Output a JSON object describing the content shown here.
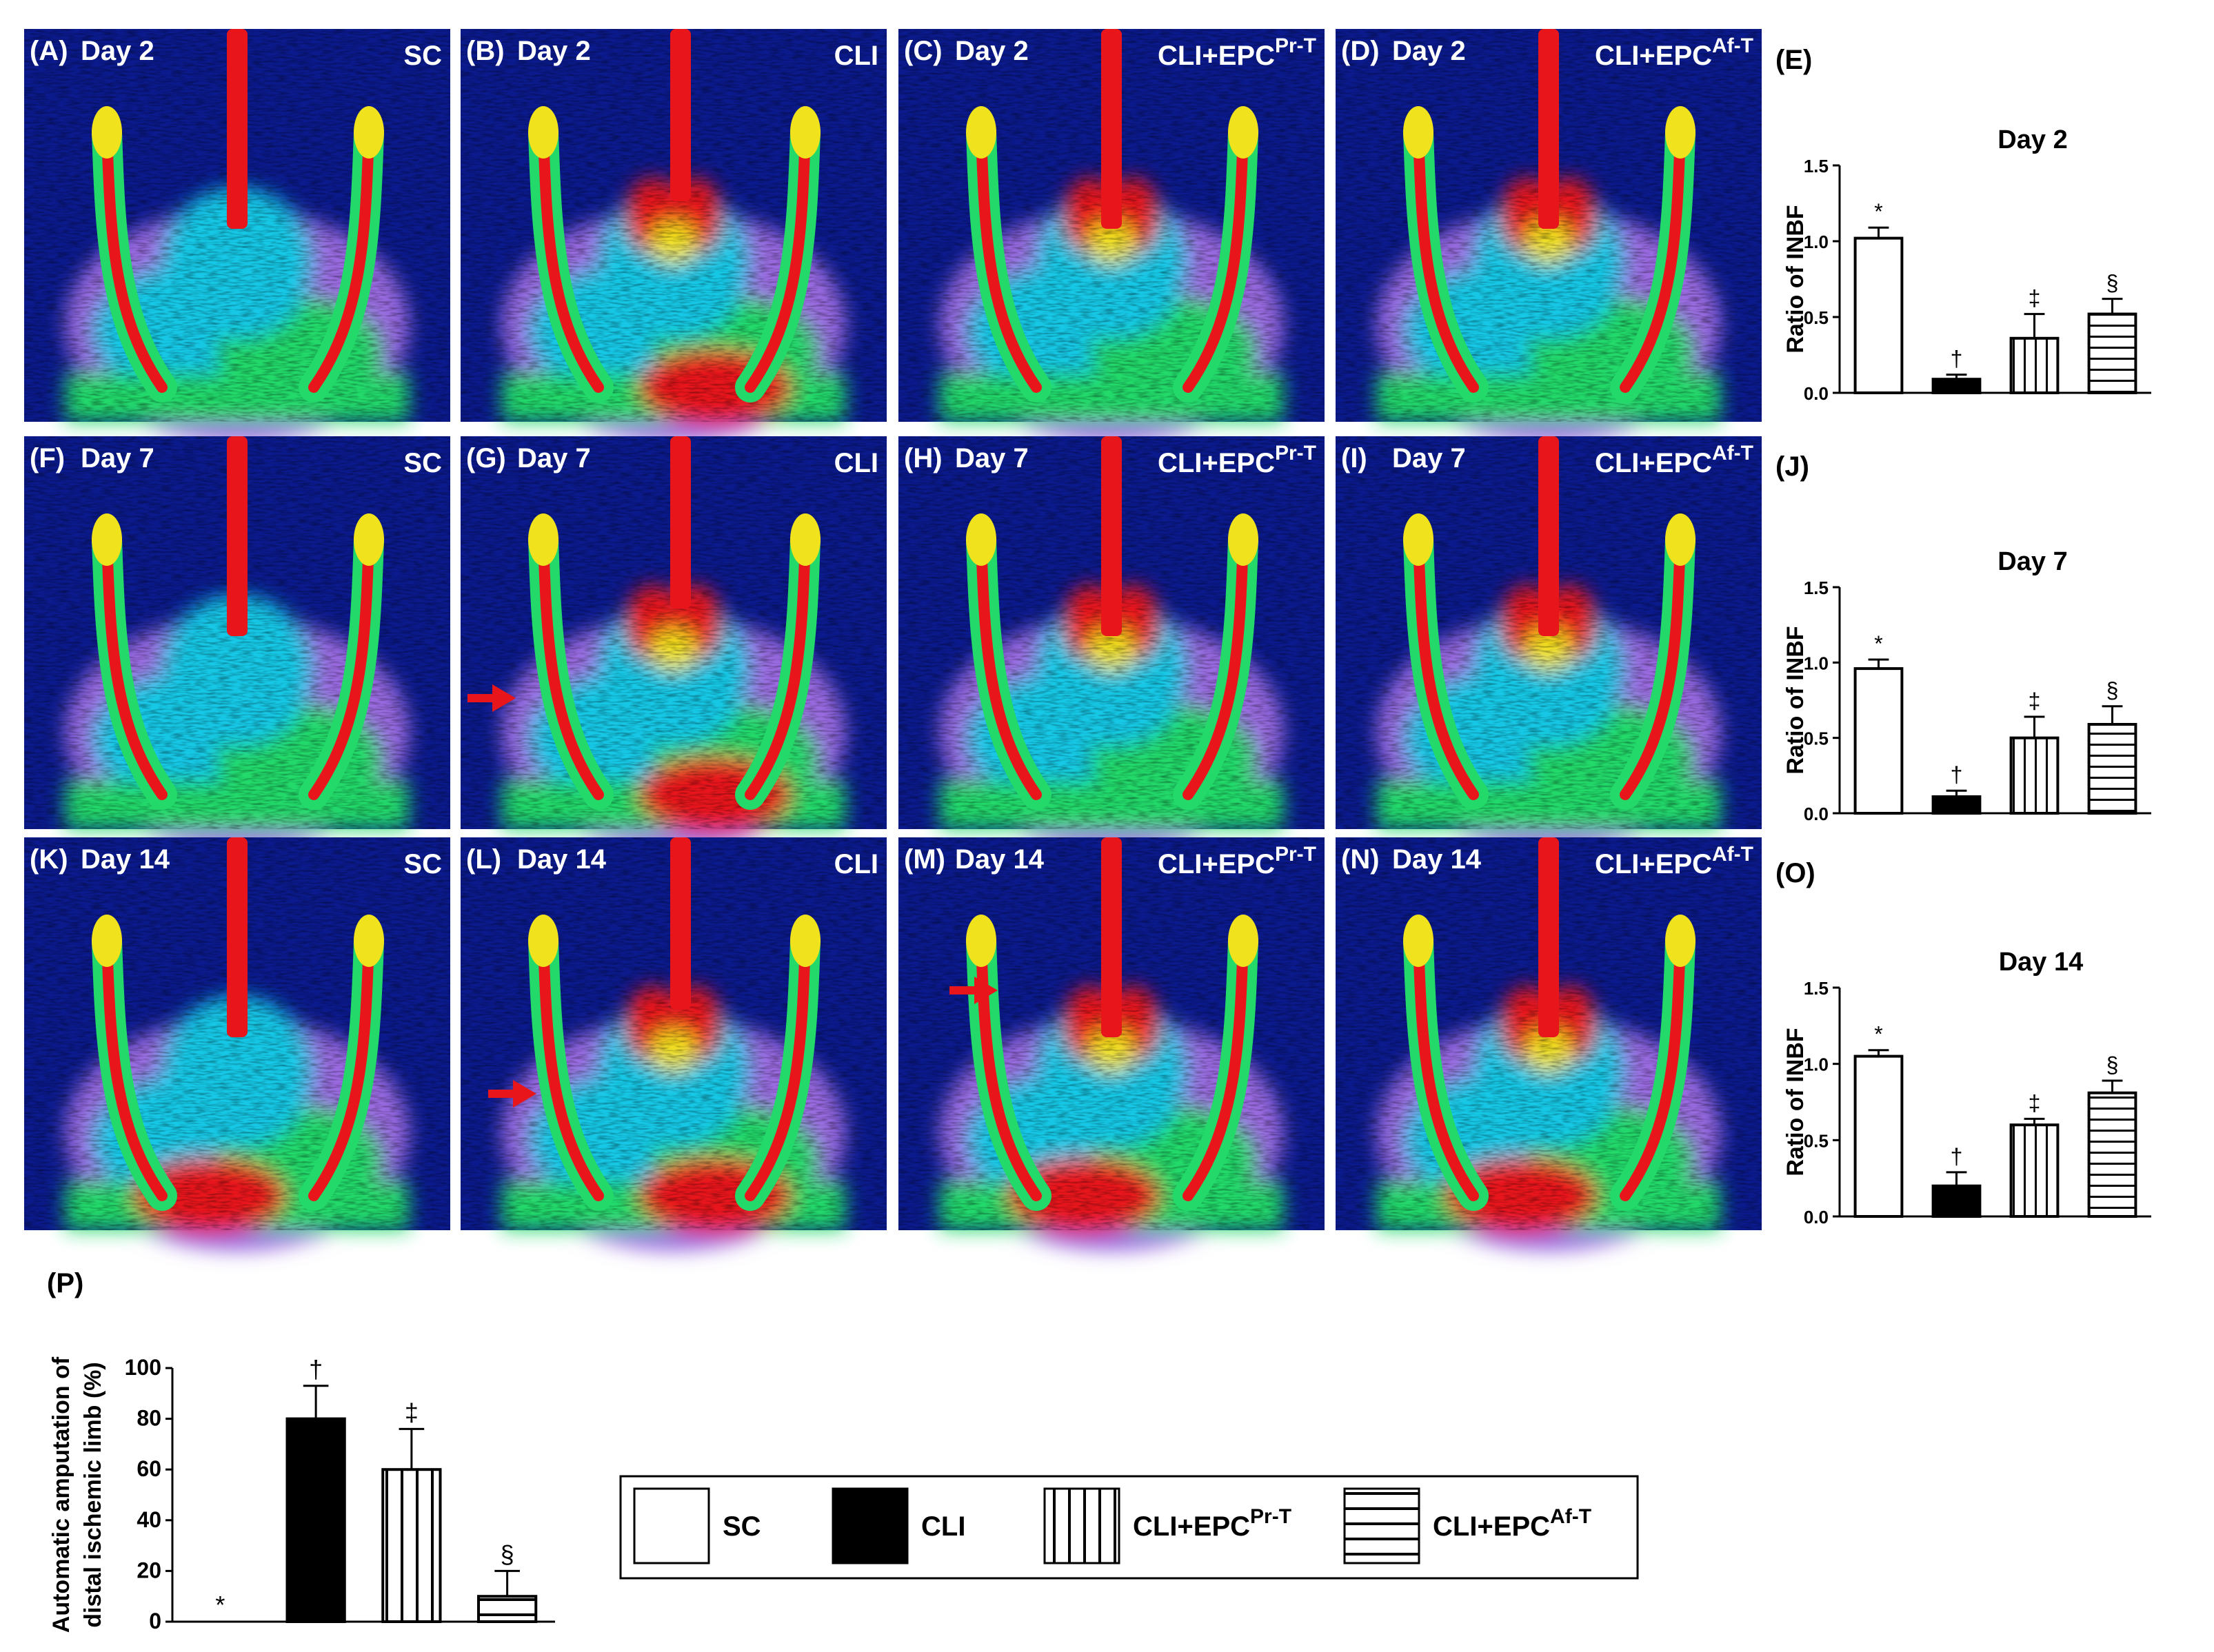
{
  "figure": {
    "rows": [
      {
        "day_label": "Day 2",
        "panels": [
          {
            "letter": "(A)",
            "group_main": "SC",
            "group_sup": ""
          },
          {
            "letter": "(B)",
            "group_main": "CLI",
            "group_sup": ""
          },
          {
            "letter": "(C)",
            "group_main": "CLI+EPC",
            "group_sup": "Pr-T"
          },
          {
            "letter": "(D)",
            "group_main": "CLI+EPC",
            "group_sup": "Af-T"
          }
        ]
      },
      {
        "day_label": "Day 7",
        "panels": [
          {
            "letter": "(F)",
            "group_main": "SC",
            "group_sup": ""
          },
          {
            "letter": "(G)",
            "group_main": "CLI",
            "group_sup": ""
          },
          {
            "letter": "(H)",
            "group_main": "CLI+EPC",
            "group_sup": "Pr-T"
          },
          {
            "letter": "(I)",
            "group_main": "CLI+EPC",
            "group_sup": "Af-T"
          }
        ]
      },
      {
        "day_label": "Day 14",
        "panels": [
          {
            "letter": "(K)",
            "group_main": "SC",
            "group_sup": ""
          },
          {
            "letter": "(L)",
            "group_main": "CLI",
            "group_sup": ""
          },
          {
            "letter": "(M)",
            "group_main": "CLI+EPC",
            "group_sup": "Pr-T"
          },
          {
            "letter": "(N)",
            "group_main": "CLI+EPC",
            "group_sup": "Af-T"
          }
        ]
      }
    ],
    "perfusion_colors": [
      "#0b1a8c",
      "#5a3fd0",
      "#9a6be0",
      "#19c8e6",
      "#22d96a",
      "#f0e21c",
      "#e8161a"
    ],
    "arrow_color": "#e8161a",
    "legend": [
      {
        "label": "SC",
        "sup": "",
        "pattern": "white"
      },
      {
        "label": "CLI",
        "sup": "",
        "pattern": "black"
      },
      {
        "label": "CLI+EPC",
        "sup": "Pr-T",
        "pattern": "vertical"
      },
      {
        "label": "CLI+EPC",
        "sup": "Af-T",
        "pattern": "horizontal"
      }
    ]
  },
  "chart_data": [
    {
      "panel": "(E)",
      "type": "bar",
      "title": "Day 2",
      "ylabel": "Ratio of INBF",
      "categories": [
        "SC",
        "CLI",
        "CLI+EPC Pr-T",
        "CLI+EPC Af-T"
      ],
      "values": [
        1.02,
        0.09,
        0.36,
        0.52
      ],
      "errors": [
        0.07,
        0.03,
        0.16,
        0.1
      ],
      "markers": [
        "*",
        "†",
        "‡",
        "§"
      ],
      "ylim": [
        0,
        1.5
      ],
      "yticks": [
        "0.0",
        "0.5",
        "1.0",
        "1.5"
      ]
    },
    {
      "panel": "(J)",
      "type": "bar",
      "title": "Day 7",
      "ylabel": "Ratio of INBF",
      "categories": [
        "SC",
        "CLI",
        "CLI+EPC Pr-T",
        "CLI+EPC Af-T"
      ],
      "values": [
        0.96,
        0.11,
        0.5,
        0.59
      ],
      "errors": [
        0.06,
        0.04,
        0.14,
        0.12
      ],
      "markers": [
        "*",
        "†",
        "‡",
        "§"
      ],
      "ylim": [
        0,
        1.5
      ],
      "yticks": [
        "0.0",
        "0.5",
        "1.0",
        "1.5"
      ]
    },
    {
      "panel": "(O)",
      "type": "bar",
      "title": "Day 14",
      "ylabel": "Ratio of INBF",
      "categories": [
        "SC",
        "CLI",
        "CLI+EPC Pr-T",
        "CLI+EPC Af-T"
      ],
      "values": [
        1.05,
        0.2,
        0.6,
        0.81
      ],
      "errors": [
        0.04,
        0.09,
        0.04,
        0.08
      ],
      "markers": [
        "*",
        "†",
        "‡",
        "§"
      ],
      "ylim": [
        0,
        1.5
      ],
      "yticks": [
        "0.0",
        "0.5",
        "1.0",
        "1.5"
      ]
    },
    {
      "panel": "(P)",
      "type": "bar",
      "title": "",
      "ylabel": "Automatic amputation of distal ischemic limb (%)",
      "ylabel_lines": [
        "Automatic amputation of",
        "distal ischemic limb (%)"
      ],
      "categories": [
        "SC",
        "CLI",
        "CLI+EPC Pr-T",
        "CLI+EPC Af-T"
      ],
      "values": [
        0,
        80,
        60,
        10
      ],
      "errors": [
        0,
        13,
        16,
        10
      ],
      "markers": [
        "*",
        "†",
        "‡",
        "§"
      ],
      "ylim": [
        0,
        100
      ],
      "yticks": [
        "0",
        "20",
        "40",
        "60",
        "80",
        "100"
      ]
    }
  ]
}
